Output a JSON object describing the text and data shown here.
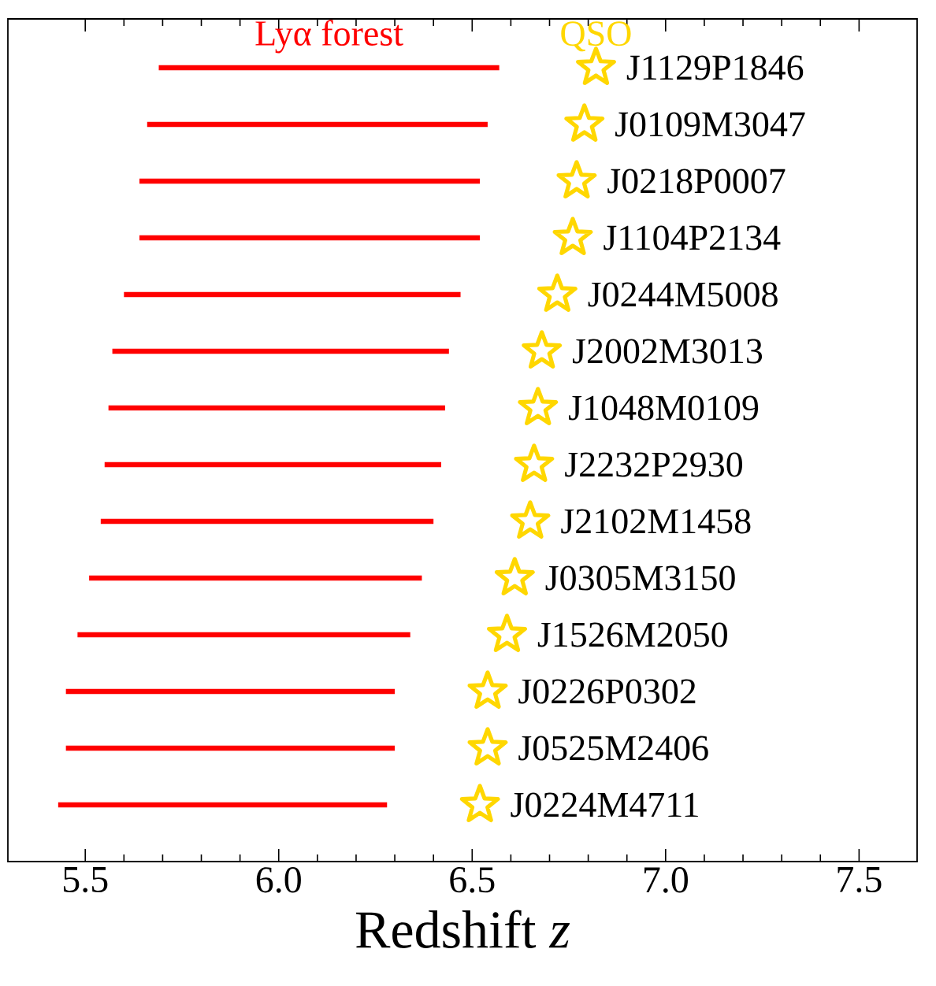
{
  "chart_data": {
    "type": "bar",
    "orientation": "horizontal",
    "xlabel": "Redshift *z*",
    "legend": "top",
    "tick_labels": "x",
    "grid": false,
    "categories": [
      "J1129P1846",
      "J0109M3047",
      "J0218P0007",
      "J1104P2134",
      "J0244M5008",
      "J2002M3013",
      "J1048M0109",
      "J2232P2930",
      "J2102M1458",
      "J0305M3150",
      "J1526M2050",
      "J0226P0302",
      "J0525M2406",
      "J0224M4711"
    ],
    "xlim": [
      5.3,
      7.65
    ],
    "xticks": [
      5.5,
      {
        "value": 6,
        "label": "6.0"
      },
      6.5,
      {
        "value": 7,
        "label": "7.0"
      },
      7.5
    ],
    "series": [
      {
        "name": "Lyα forest",
        "color": "#ff0000",
        "base": [
          5.69,
          5.66,
          5.64,
          5.64,
          5.6,
          5.57,
          5.56,
          5.55,
          5.54,
          5.51,
          5.48,
          5.45,
          5.45,
          5.43
        ],
        "values": [
          0.88,
          0.88,
          0.88,
          0.88,
          0.87,
          0.87,
          0.87,
          0.87,
          0.86,
          0.86,
          0.86,
          0.85,
          0.85,
          0.85
        ]
      },
      {
        "name": "QSO",
        "type": "scatter",
        "marker": "star",
        "color": "#ffd700",
        "values": [
          6.82,
          6.79,
          6.77,
          6.76,
          6.72,
          6.68,
          6.67,
          6.66,
          6.65,
          6.61,
          6.59,
          6.54,
          6.54,
          6.52
        ]
      }
    ]
  }
}
